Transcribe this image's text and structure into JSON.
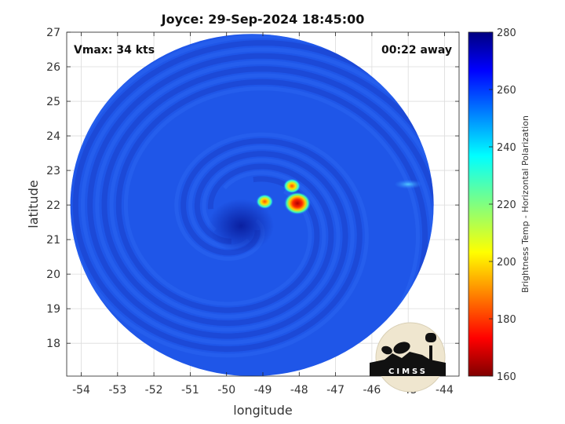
{
  "chart_data": {
    "type": "heatmap",
    "title": "Joyce: 29-Sep-2024 18:45:00",
    "xlabel": "longitude",
    "ylabel": "latitude",
    "xlim": [
      -54.4,
      -43.6
    ],
    "ylim": [
      17.05,
      27
    ],
    "xticks": [
      -54,
      -53,
      -52,
      -51,
      -50,
      -49,
      -48,
      -47,
      -46,
      -45,
      -44
    ],
    "yticks": [
      18,
      19,
      20,
      21,
      22,
      23,
      24,
      25,
      26,
      27
    ],
    "grid": true,
    "annotations": {
      "left": "Vmax: 34 kts",
      "right": "00:22 away"
    },
    "colorbar": {
      "label": "Brightness Temp - Horizontal Polarization",
      "range": [
        160,
        280
      ],
      "ticks": [
        160,
        180,
        200,
        220,
        240,
        260,
        280
      ],
      "colormap": "jet"
    },
    "swath": {
      "center": [
        -49.3,
        22.0
      ],
      "radius_deg_lon": 5.0,
      "radius_deg_lat": 4.95
    },
    "background_tb": 262,
    "features": [
      {
        "kind": "convective-core",
        "lon": -48.05,
        "lat": 22.05,
        "tb_min": 185
      },
      {
        "kind": "convective-core",
        "lon": -48.2,
        "lat": 22.55,
        "tb_min": 215
      },
      {
        "kind": "convective-core",
        "lon": -48.95,
        "lat": 22.1,
        "tb_min": 205
      },
      {
        "kind": "cold-band",
        "lon": -45.0,
        "lat": 22.6,
        "tb_min": 240
      },
      {
        "kind": "warm-eye",
        "lon": -49.6,
        "lat": 21.4,
        "tb_max": 276
      }
    ],
    "logo": "CIMSS"
  }
}
